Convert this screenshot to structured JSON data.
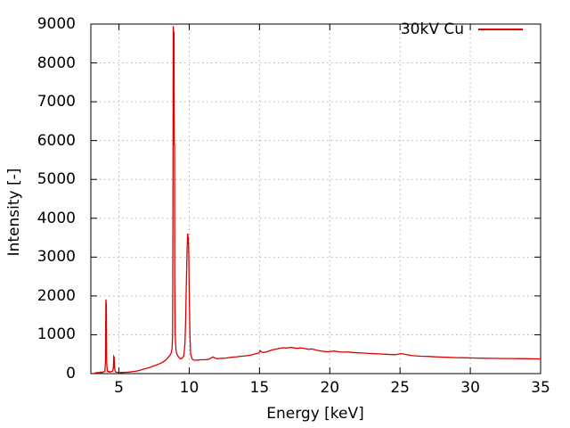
{
  "colors": {
    "line": "#dd0000",
    "grid": "#b3b3b3",
    "axis": "#000000",
    "background": "#ffffff"
  },
  "chart_data": {
    "type": "line",
    "title": "",
    "xlabel": "Energy [keV]",
    "ylabel": "Intensity [-]",
    "xlim": [
      3,
      35
    ],
    "ylim": [
      0,
      9000
    ],
    "xticks": [
      5,
      10,
      15,
      20,
      25,
      30,
      35
    ],
    "yticks": [
      0,
      1000,
      2000,
      3000,
      4000,
      5000,
      6000,
      7000,
      8000,
      9000
    ],
    "grid": true,
    "legend_position": "top-right-inside",
    "series": [
      {
        "name": "30kV Cu",
        "color": "#dd0000",
        "x": [
          3.25,
          3.3,
          3.35,
          3.4,
          3.45,
          3.5,
          3.6,
          3.65,
          3.7,
          3.8,
          3.85,
          3.9,
          4.0,
          4.04,
          4.07,
          4.1,
          4.13,
          4.17,
          4.25,
          4.3,
          4.35,
          4.45,
          4.55,
          4.6,
          4.63,
          4.66,
          4.7,
          4.75,
          4.85,
          5.0,
          5.15,
          5.3,
          5.5,
          5.7,
          5.9,
          6.1,
          6.3,
          6.5,
          6.7,
          6.9,
          7.1,
          7.3,
          7.5,
          7.7,
          7.9,
          8.1,
          8.3,
          8.45,
          8.55,
          8.65,
          8.72,
          8.78,
          8.82,
          8.84,
          8.86,
          8.875,
          8.885,
          8.9,
          8.92,
          8.935,
          8.955,
          8.97,
          9.0,
          9.05,
          9.1,
          9.2,
          9.3,
          9.4,
          9.5,
          9.6,
          9.65,
          9.7,
          9.75,
          9.8,
          9.85,
          9.88,
          9.9,
          9.92,
          9.94,
          9.97,
          10.0,
          10.05,
          10.1,
          10.2,
          10.3,
          10.45,
          10.6,
          10.8,
          11.0,
          11.2,
          11.4,
          11.55,
          11.7,
          11.85,
          12.0,
          12.2,
          12.4,
          12.6,
          12.8,
          13.0,
          13.2,
          13.4,
          13.6,
          13.8,
          14.0,
          14.2,
          14.4,
          14.6,
          14.8,
          14.95,
          15.05,
          15.15,
          15.3,
          15.5,
          15.7,
          15.9,
          16.1,
          16.3,
          16.5,
          16.7,
          16.9,
          17.1,
          17.3,
          17.5,
          17.7,
          17.9,
          18.1,
          18.3,
          18.5,
          18.7,
          18.9,
          19.1,
          19.3,
          19.5,
          19.7,
          19.9,
          20.1,
          20.3,
          20.5,
          20.7,
          21.0,
          21.3,
          21.6,
          22.0,
          22.4,
          22.8,
          23.2,
          23.6,
          24.0,
          24.4,
          24.7,
          25.0,
          25.2,
          25.5,
          25.8,
          26.1,
          26.5,
          27.0,
          27.5,
          28.0,
          28.5,
          29.0,
          29.5,
          30.0,
          30.5,
          31.0,
          31.5,
          32.0,
          32.5,
          33.0,
          33.5,
          34.0,
          34.5,
          35.0
        ],
        "y": [
          8,
          18,
          10,
          28,
          14,
          32,
          18,
          38,
          22,
          42,
          28,
          48,
          58,
          320,
          1910,
          1760,
          260,
          70,
          45,
          60,
          40,
          55,
          65,
          130,
          440,
          420,
          110,
          50,
          35,
          30,
          26,
          30,
          34,
          40,
          48,
          58,
          70,
          88,
          108,
          128,
          150,
          175,
          200,
          228,
          258,
          292,
          340,
          395,
          440,
          480,
          540,
          640,
          1000,
          4500,
          8930,
          8930,
          7480,
          8790,
          8790,
          5900,
          5900,
          2400,
          1000,
          640,
          520,
          450,
          400,
          380,
          395,
          450,
          560,
          800,
          1400,
          2400,
          3200,
          3590,
          3590,
          3380,
          3520,
          3000,
          2000,
          1000,
          520,
          380,
          350,
          345,
          350,
          355,
          355,
          360,
          370,
          400,
          430,
          395,
          385,
          390,
          395,
          400,
          410,
          420,
          428,
          435,
          442,
          450,
          458,
          465,
          480,
          500,
          520,
          530,
          590,
          555,
          545,
          560,
          585,
          610,
          625,
          640,
          655,
          665,
          660,
          668,
          672,
          660,
          650,
          662,
          655,
          640,
          625,
          635,
          620,
          600,
          585,
          575,
          568,
          562,
          572,
          582,
          570,
          560,
          552,
          558,
          545,
          535,
          528,
          520,
          512,
          505,
          498,
          490,
          488,
          515,
          508,
          485,
          468,
          458,
          448,
          442,
          432,
          424,
          418,
          412,
          408,
          404,
          400,
          396,
          393,
          391,
          389,
          387,
          385,
          383,
          381,
          379
        ]
      }
    ]
  }
}
